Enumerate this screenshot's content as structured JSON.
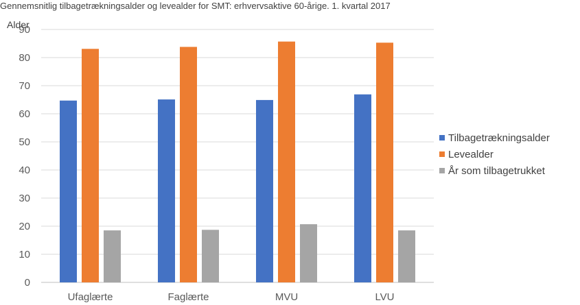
{
  "chart_data": {
    "type": "bar",
    "title": "Gennemsnitlig tilbagetrækningsalder og levealder for SMT: erhvervsaktive 60-årige. 1. kvartal 2017",
    "ylabel": "Alder",
    "xlabel": "",
    "ylim": [
      0,
      90
    ],
    "yticks": [
      "0",
      "10",
      "20",
      "30",
      "40",
      "50",
      "60",
      "70",
      "80",
      "90"
    ],
    "grid": true,
    "legend_position": "right",
    "categories": [
      "Ufaglærte",
      "Faglærte",
      "MVU",
      "LVU"
    ],
    "series": [
      {
        "name": "Tilbagetrækningsalder",
        "color": "#4472c4",
        "values": [
          64.7,
          65.1,
          64.9,
          66.9
        ]
      },
      {
        "name": "Levealder",
        "color": "#ed7d31",
        "values": [
          83.1,
          83.8,
          85.7,
          85.3
        ]
      },
      {
        "name": "År som tilbagetrukket",
        "color": "#a5a5a5",
        "values": [
          18.5,
          18.7,
          20.7,
          18.5
        ]
      }
    ]
  }
}
